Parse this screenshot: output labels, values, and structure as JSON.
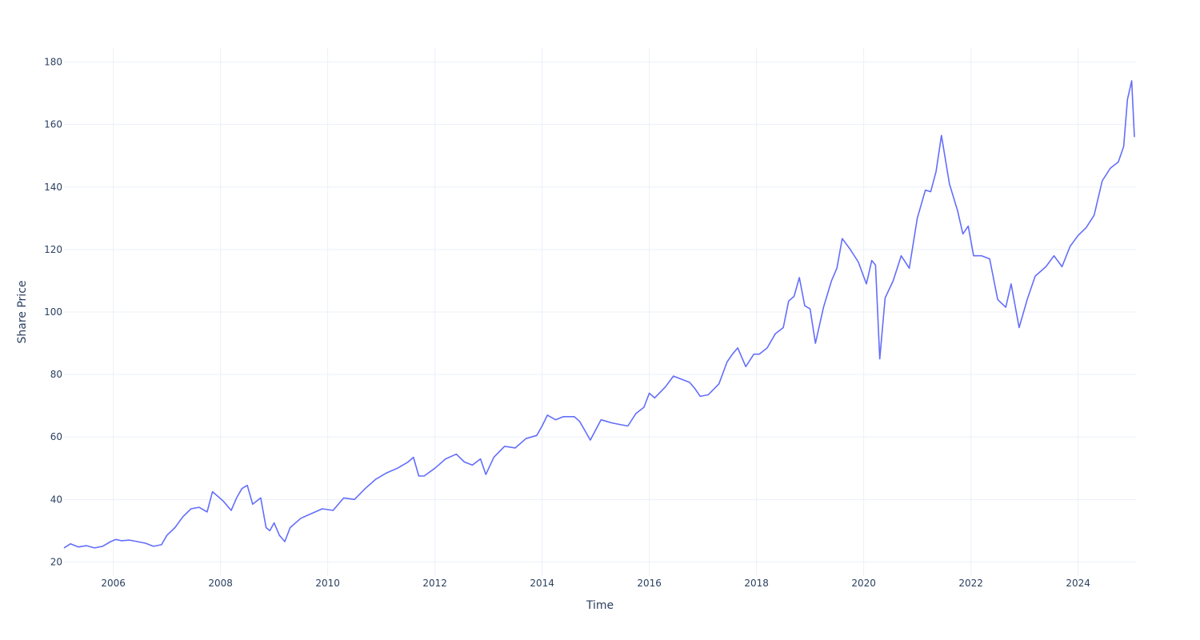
{
  "chart_data": {
    "type": "line",
    "title": "",
    "xlabel": "Time",
    "ylabel": "Share Price",
    "x_range": [
      2005.08,
      2025.08
    ],
    "ylim": [
      15.5,
      184.5
    ],
    "x_ticks": [
      2006,
      2008,
      2010,
      2012,
      2014,
      2016,
      2018,
      2020,
      2022,
      2024
    ],
    "x_tick_labels": [
      "2006",
      "2008",
      "2010",
      "2012",
      "2014",
      "2016",
      "2018",
      "2020",
      "2022",
      "2024"
    ],
    "y_ticks": [
      20,
      40,
      60,
      80,
      100,
      120,
      140,
      160,
      180
    ],
    "y_tick_labels": [
      "20",
      "40",
      "60",
      "80",
      "100",
      "120",
      "140",
      "160",
      "180"
    ],
    "grid": true,
    "line_color": "#636efa",
    "grid_color": "#ebf0f8",
    "text_color": "#2a3f5f",
    "series": [
      {
        "x": [
          2005.08,
          2005.2,
          2005.35,
          2005.5,
          2005.65,
          2005.8,
          2005.95,
          2006.05,
          2006.15,
          2006.3,
          2006.45,
          2006.6,
          2006.75,
          2006.9,
          2007.0,
          2007.15,
          2007.3,
          2007.45,
          2007.6,
          2007.75,
          2007.85,
          2007.95,
          2008.05,
          2008.2,
          2008.3,
          2008.4,
          2008.5,
          2008.6,
          2008.75,
          2008.85,
          2008.92,
          2009.0,
          2009.1,
          2009.2,
          2009.3,
          2009.5,
          2009.7,
          2009.9,
          2010.1,
          2010.3,
          2010.5,
          2010.7,
          2010.9,
          2011.1,
          2011.3,
          2011.5,
          2011.6,
          2011.7,
          2011.8,
          2012.0,
          2012.2,
          2012.4,
          2012.55,
          2012.7,
          2012.85,
          2012.95,
          2013.1,
          2013.3,
          2013.5,
          2013.7,
          2013.9,
          2014.0,
          2014.1,
          2014.25,
          2014.4,
          2014.6,
          2014.7,
          2014.8,
          2014.9,
          2015.1,
          2015.3,
          2015.45,
          2015.6,
          2015.75,
          2015.9,
          2016.0,
          2016.1,
          2016.3,
          2016.45,
          2016.6,
          2016.75,
          2016.85,
          2016.95,
          2017.1,
          2017.3,
          2017.45,
          2017.55,
          2017.65,
          2017.8,
          2017.95,
          2018.05,
          2018.2,
          2018.35,
          2018.5,
          2018.6,
          2018.7,
          2018.8,
          2018.9,
          2019.0,
          2019.1,
          2019.25,
          2019.4,
          2019.5,
          2019.6,
          2019.75,
          2019.9,
          2020.05,
          2020.15,
          2020.22,
          2020.3,
          2020.4,
          2020.55,
          2020.7,
          2020.85,
          2021.0,
          2021.15,
          2021.25,
          2021.35,
          2021.45,
          2021.6,
          2021.75,
          2021.85,
          2021.95,
          2022.05,
          2022.2,
          2022.35,
          2022.5,
          2022.65,
          2022.75,
          2022.9,
          2023.05,
          2023.2,
          2023.4,
          2023.55,
          2023.7,
          2023.85,
          2024.0,
          2024.15,
          2024.3,
          2024.45,
          2024.6,
          2024.75,
          2024.85,
          2024.92,
          2025.0,
          2025.05
        ],
        "y": [
          24.5,
          25.8,
          24.8,
          25.2,
          24.5,
          25.0,
          26.5,
          27.2,
          26.8,
          27.0,
          26.5,
          26.0,
          25.0,
          25.5,
          28.5,
          31.0,
          34.5,
          37.0,
          37.5,
          36.0,
          42.5,
          41.0,
          39.5,
          36.5,
          40.5,
          43.5,
          44.5,
          38.5,
          40.5,
          31.0,
          30.0,
          32.5,
          28.5,
          26.5,
          31.0,
          34.0,
          35.5,
          37.0,
          36.5,
          40.5,
          40.0,
          43.5,
          46.5,
          48.5,
          50.0,
          52.0,
          53.5,
          47.5,
          47.5,
          50.0,
          53.0,
          54.5,
          52.0,
          51.0,
          53.0,
          48.0,
          53.5,
          57.0,
          56.5,
          59.5,
          60.5,
          63.5,
          67.0,
          65.5,
          66.5,
          66.5,
          65.0,
          62.0,
          59.0,
          65.5,
          64.5,
          64.0,
          63.5,
          67.5,
          69.5,
          74.0,
          72.5,
          76.0,
          79.5,
          78.5,
          77.5,
          75.5,
          73.0,
          73.5,
          77.0,
          84.0,
          86.5,
          88.5,
          82.5,
          86.5,
          86.5,
          88.5,
          93.0,
          95.0,
          103.5,
          105.0,
          111.0,
          102.0,
          101.0,
          90.0,
          101.5,
          110.0,
          114.0,
          123.5,
          120.0,
          116.0,
          109.0,
          116.5,
          115.0,
          85.0,
          104.5,
          110.0,
          118.0,
          114.0,
          130.0,
          139.0,
          138.5,
          145.0,
          156.5,
          141.0,
          132.5,
          125.0,
          127.5,
          118.0,
          118.0,
          117.0,
          104.0,
          101.5,
          109.0,
          95.0,
          104.0,
          111.5,
          114.5,
          118.0,
          114.5,
          121.0,
          124.5,
          127.0,
          131.0,
          142.0,
          146.0,
          148.0,
          153.0,
          168.0,
          174.0,
          156.0
        ]
      }
    ]
  }
}
